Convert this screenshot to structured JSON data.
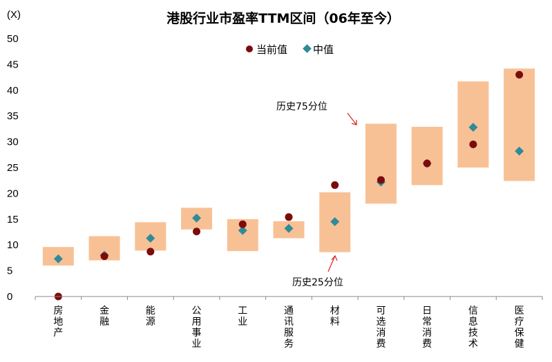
{
  "chart_data": {
    "type": "range-dot",
    "title": "港股行业市盈率TTM区间（06年至今）",
    "ylabel": "(X)",
    "ylim": [
      0,
      50
    ],
    "yticks": [
      0,
      5,
      10,
      15,
      20,
      25,
      30,
      35,
      40,
      45,
      50
    ],
    "categories": [
      "房地产",
      "金融",
      "能源",
      "公用事业",
      "工业",
      "通讯服务",
      "材料",
      "可选消费",
      "日常消费",
      "信息技术",
      "医疗保健"
    ],
    "series": [
      {
        "name": "当前值",
        "marker": "circle",
        "color": "#7B0C0C",
        "values": [
          0.0,
          7.8,
          8.7,
          12.6,
          14.0,
          15.4,
          21.6,
          22.6,
          25.8,
          29.5,
          43.0
        ]
      },
      {
        "name": "中值",
        "marker": "diamond",
        "color": "#2E8B9A",
        "values": [
          7.3,
          8.0,
          11.3,
          15.2,
          12.8,
          13.2,
          14.5,
          22.2,
          25.8,
          32.8,
          28.2
        ]
      }
    ],
    "ranges": {
      "color": "#F8C195",
      "p25": [
        6.0,
        7.0,
        8.9,
        13.0,
        8.8,
        11.3,
        8.6,
        18.0,
        21.6,
        25.0,
        22.4
      ],
      "p75": [
        9.6,
        11.7,
        14.4,
        17.2,
        15.0,
        14.6,
        20.2,
        33.5,
        32.9,
        41.7,
        44.2
      ]
    },
    "annotations": [
      {
        "text": "历史75分位",
        "points_to_category": "可选消费",
        "bound": "p75"
      },
      {
        "text": "历史25分位",
        "points_to_category": "材料",
        "bound": "p25"
      }
    ],
    "legend_position": "top-center",
    "grid": false
  }
}
